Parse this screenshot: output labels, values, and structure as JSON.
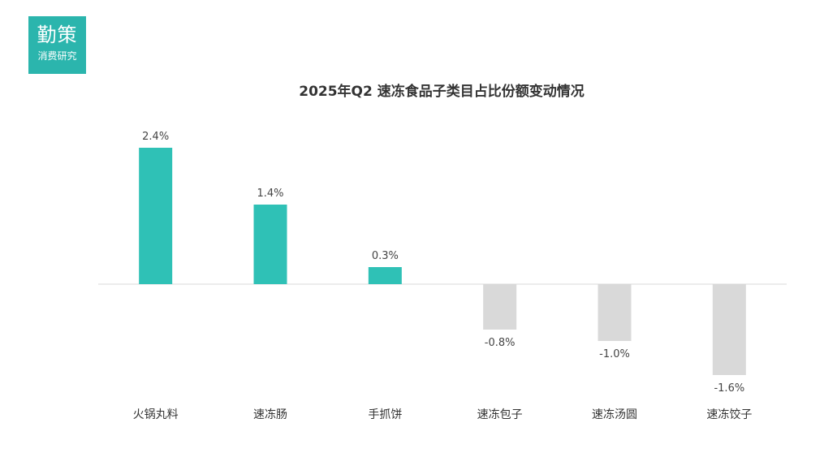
{
  "logo": {
    "main": "勤策",
    "sub": "消费研究"
  },
  "colors": {
    "positive": "#2fc1b6",
    "negative": "#d9d9d9",
    "baseline": "#d9d9d9",
    "brand": "#2bb5ad"
  },
  "chart_data": {
    "type": "bar",
    "title": "2025年Q2 速冻食品子类目占比份额变动情况",
    "categories": [
      "火锅丸料",
      "速冻肠",
      "手抓饼",
      "速冻包子",
      "速冻汤圆",
      "速冻饺子"
    ],
    "values": [
      2.4,
      1.4,
      0.3,
      -0.8,
      -1.0,
      -1.6
    ],
    "labels": [
      "2.4%",
      "1.4%",
      "0.3%",
      "-0.8%",
      "-1.0%",
      "-1.6%"
    ],
    "unit": "%",
    "ylim": [
      -1.6,
      2.4
    ],
    "grid": false,
    "legend": "none"
  }
}
